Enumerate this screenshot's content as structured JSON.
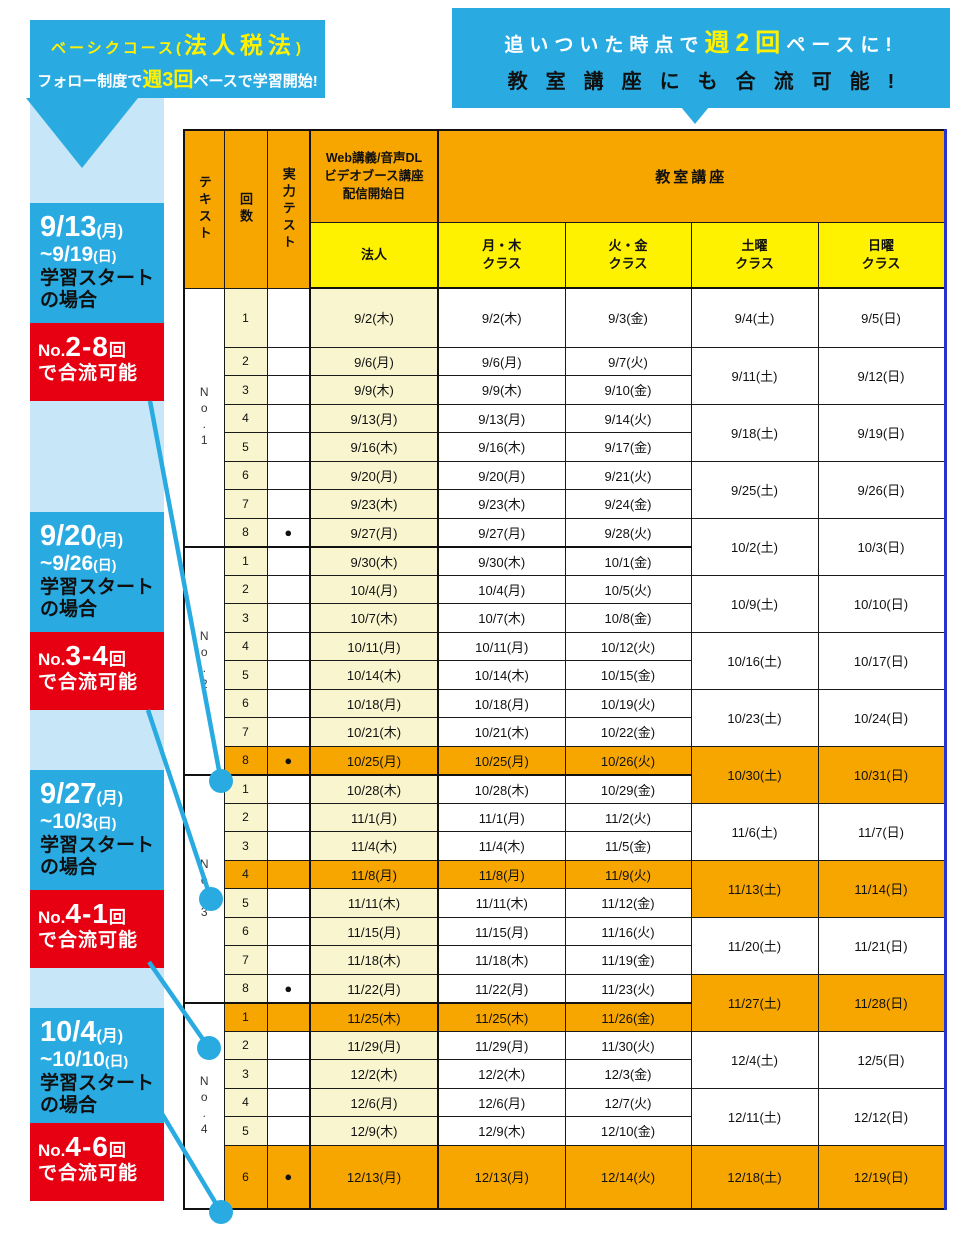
{
  "colors": {
    "banner_blue": "#29ABE2",
    "pale_blue": "#C7E6F7",
    "red": "#E60012",
    "orange": "#F7A600",
    "yellow": "#FFF200",
    "cream": "#F9F6CF",
    "outer_border_blue": "#2633CC",
    "accent_yellow": "#FFF100"
  },
  "banner_left": {
    "line1_pre": "ベーシクコース(",
    "line1_em": "法人税法",
    "line1_post": ")",
    "line2_pre": "フォロー制度で",
    "line2_em": "週3回",
    "line2_post": "ペースで学習開始!"
  },
  "banner_right": {
    "line1_pre": "追いついた時点で",
    "line1_em": "週2回",
    "line1_post": "ペースに!",
    "line2": "教室講座にも合流可能!"
  },
  "sidebar": [
    {
      "date1": "9/13",
      "date1_day": "(月)",
      "date2": "~9/19",
      "date2_day": "(日)",
      "note1": "学習スタート",
      "note2": "の場合",
      "join_no": "No.",
      "join_range": "2-8",
      "join_unit": "回",
      "join_text": "で合流可能"
    },
    {
      "date1": "9/20",
      "date1_day": "(月)",
      "date2": "~9/26",
      "date2_day": "(日)",
      "note1": "学習スタート",
      "note2": "の場合",
      "join_no": "No.",
      "join_range": "3-4",
      "join_unit": "回",
      "join_text": "で合流可能"
    },
    {
      "date1": "9/27",
      "date1_day": "(月)",
      "date2": "~10/3",
      "date2_day": "(日)",
      "note1": "学習スタート",
      "note2": "の場合",
      "join_no": "No.",
      "join_range": "4-1",
      "join_unit": "回",
      "join_text": "で合流可能"
    },
    {
      "date1": "10/4",
      "date1_day": "(月)",
      "date2": "~10/10",
      "date2_day": "(日)",
      "note1": "学習スタート",
      "note2": "の場合",
      "join_no": "No.",
      "join_range": "4-6",
      "join_unit": "回",
      "join_text": "で合流可能"
    }
  ],
  "table": {
    "header": {
      "col_text": "テキスト",
      "col_kaisu": "回数",
      "col_test": "実力テスト",
      "web_lines": [
        "Web講義/音声DL",
        "ビデオブース講座",
        "配信開始日"
      ],
      "houjin": "法人",
      "kyoshitsu": "教室講座",
      "classes": [
        [
          "月・木",
          "クラス"
        ],
        [
          "火・金",
          "クラス"
        ],
        [
          "土曜",
          "クラス"
        ],
        [
          "日曜",
          "クラス"
        ]
      ]
    },
    "test_mark": "●",
    "sections": [
      {
        "label": "No.1",
        "rows": [
          {
            "n": "1",
            "test": "",
            "d": "9/2(木)",
            "mt": "9/2(木)",
            "tf": "9/3(金)",
            "sat": "9/4(土)",
            "satspan": 1,
            "sun": "9/5(日)",
            "sunspan": 1
          },
          {
            "n": "2",
            "test": "",
            "d": "9/6(月)",
            "mt": "9/6(月)",
            "tf": "9/7(火)",
            "sat": "9/11(土)",
            "satspan": 2,
            "sun": "9/12(日)",
            "sunspan": 2
          },
          {
            "n": "3",
            "test": "",
            "d": "9/9(木)",
            "mt": "9/9(木)",
            "tf": "9/10(金)"
          },
          {
            "n": "4",
            "test": "",
            "d": "9/13(月)",
            "mt": "9/13(月)",
            "tf": "9/14(火)",
            "sat": "9/18(土)",
            "satspan": 2,
            "sun": "9/19(日)",
            "sunspan": 2
          },
          {
            "n": "5",
            "test": "",
            "d": "9/16(木)",
            "mt": "9/16(木)",
            "tf": "9/17(金)"
          },
          {
            "n": "6",
            "test": "",
            "d": "9/20(月)",
            "mt": "9/20(月)",
            "tf": "9/21(火)",
            "sat": "9/25(土)",
            "satspan": 2,
            "sun": "9/26(日)",
            "sunspan": 2
          },
          {
            "n": "7",
            "test": "",
            "d": "9/23(木)",
            "mt": "9/23(木)",
            "tf": "9/24(金)"
          },
          {
            "n": "8",
            "test": "●",
            "d": "9/27(月)",
            "mt": "9/27(月)",
            "tf": "9/28(火)",
            "sat": "10/2(土)",
            "satspan": 2,
            "sun": "10/3(日)",
            "sunspan": 2
          }
        ]
      },
      {
        "label": "No.2",
        "rows": [
          {
            "n": "1",
            "test": "",
            "d": "9/30(木)",
            "mt": "9/30(木)",
            "tf": "10/1(金)"
          },
          {
            "n": "2",
            "test": "",
            "d": "10/4(月)",
            "mt": "10/4(月)",
            "tf": "10/5(火)",
            "sat": "10/9(土)",
            "satspan": 2,
            "sun": "10/10(日)",
            "sunspan": 2
          },
          {
            "n": "3",
            "test": "",
            "d": "10/7(木)",
            "mt": "10/7(木)",
            "tf": "10/8(金)"
          },
          {
            "n": "4",
            "test": "",
            "d": "10/11(月)",
            "mt": "10/11(月)",
            "tf": "10/12(火)",
            "sat": "10/16(土)",
            "satspan": 2,
            "sun": "10/17(日)",
            "sunspan": 2
          },
          {
            "n": "5",
            "test": "",
            "d": "10/14(木)",
            "mt": "10/14(木)",
            "tf": "10/15(金)"
          },
          {
            "n": "6",
            "test": "",
            "d": "10/18(月)",
            "mt": "10/18(月)",
            "tf": "10/19(火)",
            "sat": "10/23(土)",
            "satspan": 2,
            "sun": "10/24(日)",
            "sunspan": 2
          },
          {
            "n": "7",
            "test": "",
            "d": "10/21(木)",
            "mt": "10/21(木)",
            "tf": "10/22(金)"
          },
          {
            "n": "8",
            "test": "●",
            "d": "10/25(月)",
            "mt": "10/25(月)",
            "tf": "10/26(火)",
            "sat": "10/30(土)",
            "satspan": 2,
            "sun": "10/31(日)",
            "sunspan": 2,
            "hl": true,
            "whl": true
          }
        ]
      },
      {
        "label": "No.3",
        "rows": [
          {
            "n": "1",
            "test": "",
            "d": "10/28(木)",
            "mt": "10/28(木)",
            "tf": "10/29(金)"
          },
          {
            "n": "2",
            "test": "",
            "d": "11/1(月)",
            "mt": "11/1(月)",
            "tf": "11/2(火)",
            "sat": "11/6(土)",
            "satspan": 2,
            "sun": "11/7(日)",
            "sunspan": 2
          },
          {
            "n": "3",
            "test": "",
            "d": "11/4(木)",
            "mt": "11/4(木)",
            "tf": "11/5(金)"
          },
          {
            "n": "4",
            "test": "",
            "d": "11/8(月)",
            "mt": "11/8(月)",
            "tf": "11/9(火)",
            "sat": "11/13(土)",
            "satspan": 2,
            "sun": "11/14(日)",
            "sunspan": 2,
            "hl": true,
            "whl": true
          },
          {
            "n": "5",
            "test": "",
            "d": "11/11(木)",
            "mt": "11/11(木)",
            "tf": "11/12(金)"
          },
          {
            "n": "6",
            "test": "",
            "d": "11/15(月)",
            "mt": "11/15(月)",
            "tf": "11/16(火)",
            "sat": "11/20(土)",
            "satspan": 2,
            "sun": "11/21(日)",
            "sunspan": 2
          },
          {
            "n": "7",
            "test": "",
            "d": "11/18(木)",
            "mt": "11/18(木)",
            "tf": "11/19(金)"
          },
          {
            "n": "8",
            "test": "●",
            "d": "11/22(月)",
            "mt": "11/22(月)",
            "tf": "11/23(火)",
            "sat": "11/27(土)",
            "satspan": 2,
            "sun": "11/28(日)",
            "sunspan": 2,
            "whl": true
          }
        ]
      },
      {
        "label": "No.4",
        "rows": [
          {
            "n": "1",
            "test": "",
            "d": "11/25(木)",
            "mt": "11/25(木)",
            "tf": "11/26(金)",
            "hl": true
          },
          {
            "n": "2",
            "test": "",
            "d": "11/29(月)",
            "mt": "11/29(月)",
            "tf": "11/30(火)",
            "sat": "12/4(土)",
            "satspan": 2,
            "sun": "12/5(日)",
            "sunspan": 2
          },
          {
            "n": "3",
            "test": "",
            "d": "12/2(木)",
            "mt": "12/2(木)",
            "tf": "12/3(金)"
          },
          {
            "n": "4",
            "test": "",
            "d": "12/6(月)",
            "mt": "12/6(月)",
            "tf": "12/7(火)",
            "sat": "12/11(土)",
            "satspan": 2,
            "sun": "12/12(日)",
            "sunspan": 2
          },
          {
            "n": "5",
            "test": "",
            "d": "12/9(木)",
            "mt": "12/9(木)",
            "tf": "12/10(金)"
          },
          {
            "n": "6",
            "test": "●",
            "d": "12/13(月)",
            "mt": "12/13(月)",
            "tf": "12/14(火)",
            "sat": "12/18(土)",
            "satspan": 1,
            "sun": "12/19(日)",
            "sunspan": 1,
            "hl": true,
            "whl": true
          }
        ]
      }
    ]
  }
}
